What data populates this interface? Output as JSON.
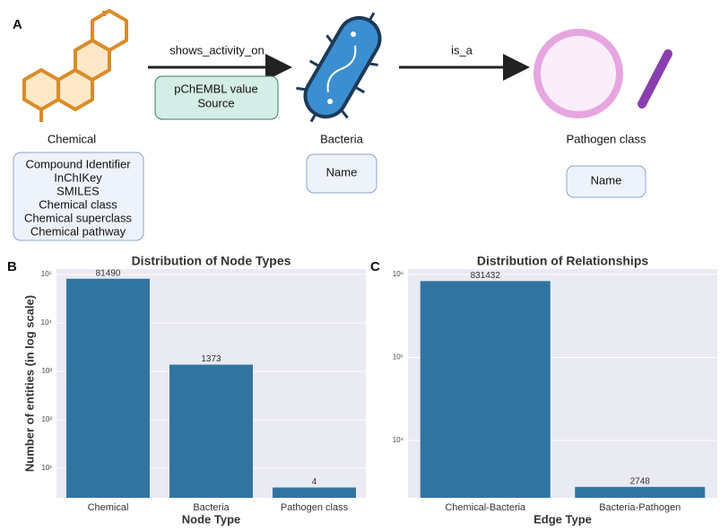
{
  "panels": {
    "a": "A",
    "b": "B",
    "c": "C"
  },
  "diagram": {
    "nodes": [
      {
        "label": "Chemical",
        "properties": [
          "Compound Identifier",
          "InChIKey",
          "SMILES",
          "Chemical class",
          "Chemical superclass",
          "Chemical pathway"
        ]
      },
      {
        "label": "Bacteria",
        "properties": [
          "Name"
        ]
      },
      {
        "label": "Pathogen class",
        "properties": [
          "Name"
        ]
      }
    ],
    "edges": [
      {
        "label": "shows_activity_on",
        "properties": [
          "pChEMBL value",
          "Source"
        ]
      },
      {
        "label": "is_a"
      }
    ]
  },
  "chart_data": [
    {
      "type": "bar",
      "title": "Distribution of Node Types",
      "xlabel": "Node Type",
      "ylabel": "Number of entities (in log scale)",
      "categories": [
        "Chemical",
        "Bacteria",
        "Pathogen class"
      ],
      "values": [
        81490,
        1373,
        4
      ],
      "color": "#3274a1",
      "log_y": true,
      "grid": true,
      "ylim": [
        2.45,
        129000
      ],
      "yticks": [
        {
          "value": 10,
          "label": "10¹"
        },
        {
          "value": 100,
          "label": "10²"
        },
        {
          "value": 1000,
          "label": "10³"
        },
        {
          "value": 10000,
          "label": "10⁴"
        },
        {
          "value": 100000,
          "label": "10⁵"
        }
      ]
    },
    {
      "type": "bar",
      "title": "Distribution of Relationships",
      "xlabel": "Edge Type",
      "categories": [
        "Chemical-Bacteria",
        "Bacteria-Pathogen"
      ],
      "values": [
        831432,
        2748
      ],
      "color": "#3274a1",
      "log_y": true,
      "grid": true,
      "ylim": [
        2030,
        1160000
      ],
      "yticks": [
        {
          "value": 10000,
          "label": "10⁴"
        },
        {
          "value": 100000,
          "label": "10⁵"
        },
        {
          "value": 1000000,
          "label": "10⁶"
        }
      ]
    }
  ]
}
